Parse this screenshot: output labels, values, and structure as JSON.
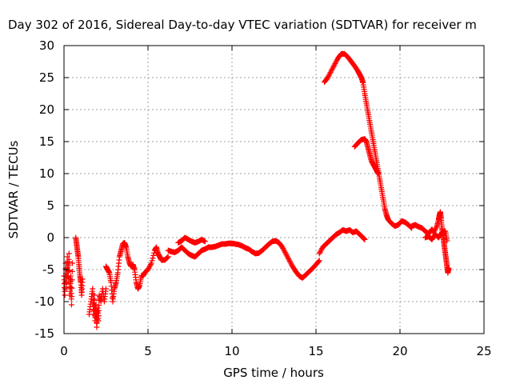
{
  "chart_data": {
    "type": "scatter",
    "title": "Day 302 of 2016, Sidereal Day-to-day VTEC variation (SDTVAR) for receiver m",
    "xlabel": "GPS time / hours",
    "ylabel": "SDTVAR / TECUs",
    "xlim": [
      0,
      25
    ],
    "ylim": [
      -15,
      30
    ],
    "xticks": [
      "0",
      "5",
      "10",
      "15",
      "20",
      "25"
    ],
    "yticks": [
      "-15",
      "-10",
      "-5",
      "0",
      "5",
      "10",
      "15",
      "20",
      "25",
      "30"
    ],
    "grid": true,
    "marker": "+",
    "color": "#ff0000",
    "series": [
      {
        "segments": [
          [
            [
              0.0,
              -6
            ],
            [
              0.05,
              -9
            ],
            [
              0.1,
              -4
            ],
            [
              0.15,
              -8
            ],
            [
              0.2,
              -3
            ],
            [
              0.25,
              -7
            ],
            [
              0.3,
              -2.5
            ],
            [
              0.35,
              -9
            ],
            [
              0.4,
              -6
            ],
            [
              0.45,
              -10.5
            ],
            [
              0.5,
              -4
            ]
          ],
          [
            [
              0.7,
              0
            ],
            [
              0.75,
              -1
            ],
            [
              0.8,
              -2
            ],
            [
              0.85,
              -3
            ],
            [
              0.9,
              -4.5
            ],
            [
              0.95,
              -6
            ],
            [
              1.0,
              -7
            ],
            [
              1.05,
              -9
            ],
            [
              1.1,
              -6.5
            ]
          ],
          [
            [
              1.5,
              -12
            ],
            [
              1.6,
              -10
            ],
            [
              1.7,
              -8
            ],
            [
              1.75,
              -12
            ],
            [
              1.8,
              -9
            ],
            [
              1.85,
              -13
            ],
            [
              1.9,
              -10.5
            ],
            [
              1.95,
              -14
            ],
            [
              2.0,
              -11
            ],
            [
              2.05,
              -13
            ],
            [
              2.1,
              -9
            ],
            [
              2.2,
              -10
            ],
            [
              2.3,
              -8
            ],
            [
              2.4,
              -10
            ],
            [
              2.5,
              -8
            ]
          ],
          [
            [
              2.5,
              -4.5
            ],
            [
              2.6,
              -5
            ],
            [
              2.7,
              -5.5
            ],
            [
              2.8,
              -7
            ],
            [
              2.9,
              -10
            ],
            [
              3.0,
              -8
            ],
            [
              3.1,
              -7
            ],
            [
              3.2,
              -5.5
            ],
            [
              3.3,
              -3
            ],
            [
              3.4,
              -2
            ],
            [
              3.5,
              -1
            ],
            [
              3.6,
              -0.8
            ],
            [
              3.7,
              -1.5
            ],
            [
              3.8,
              -3
            ],
            [
              3.9,
              -4
            ],
            [
              4.0,
              -4.5
            ],
            [
              4.1,
              -4.2
            ],
            [
              4.2,
              -5
            ],
            [
              4.3,
              -7
            ],
            [
              4.4,
              -8
            ],
            [
              4.5,
              -7.5
            ],
            [
              4.6,
              -6
            ],
            [
              4.7,
              -6
            ],
            [
              4.8,
              -5.5
            ],
            [
              5.0,
              -5
            ],
            [
              5.2,
              -4
            ],
            [
              5.4,
              -2
            ],
            [
              5.5,
              -1.5
            ],
            [
              5.6,
              -2.5
            ],
            [
              5.7,
              -3
            ],
            [
              5.8,
              -3.5
            ],
            [
              6.0,
              -3.5
            ],
            [
              6.2,
              -3
            ]
          ],
          [
            [
              6.2,
              -2
            ],
            [
              6.4,
              -2.2
            ],
            [
              6.6,
              -2.3
            ],
            [
              6.8,
              -2
            ],
            [
              7.0,
              -1.5
            ],
            [
              7.2,
              -2
            ],
            [
              7.4,
              -2.5
            ],
            [
              7.6,
              -2.8
            ],
            [
              7.8,
              -3
            ],
            [
              8.0,
              -2.5
            ],
            [
              8.2,
              -2
            ],
            [
              8.4,
              -1.8
            ],
            [
              8.6,
              -1.5
            ],
            [
              8.8,
              -1.5
            ],
            [
              9.0,
              -1.4
            ],
            [
              9.2,
              -1.2
            ],
            [
              9.4,
              -1.0
            ],
            [
              9.6,
              -1.0
            ],
            [
              9.8,
              -0.9
            ],
            [
              10.0,
              -0.9
            ],
            [
              10.2,
              -1.0
            ],
            [
              10.4,
              -1.1
            ],
            [
              10.6,
              -1.3
            ],
            [
              10.8,
              -1.6
            ],
            [
              11.0,
              -1.8
            ],
            [
              11.2,
              -2.2
            ],
            [
              11.4,
              -2.5
            ],
            [
              11.6,
              -2.4
            ],
            [
              11.8,
              -2.0
            ],
            [
              12.0,
              -1.5
            ],
            [
              12.2,
              -1.0
            ],
            [
              12.4,
              -0.6
            ],
            [
              12.6,
              -0.5
            ],
            [
              12.8,
              -0.8
            ],
            [
              13.0,
              -1.5
            ],
            [
              13.2,
              -2.5
            ],
            [
              13.4,
              -3.5
            ],
            [
              13.6,
              -4.5
            ],
            [
              13.8,
              -5.3
            ],
            [
              14.0,
              -6.0
            ],
            [
              14.2,
              -6.3
            ],
            [
              14.4,
              -5.8
            ],
            [
              14.6,
              -5.3
            ],
            [
              14.8,
              -4.8
            ],
            [
              15.0,
              -4.2
            ],
            [
              15.2,
              -3.6
            ]
          ],
          [
            [
              6.8,
              -0.8
            ],
            [
              7.0,
              -0.5
            ],
            [
              7.2,
              0.0
            ],
            [
              7.4,
              -0.3
            ],
            [
              7.6,
              -0.6
            ],
            [
              7.8,
              -0.8
            ],
            [
              8.0,
              -0.6
            ],
            [
              8.2,
              -0.3
            ],
            [
              8.4,
              -0.6
            ]
          ],
          [
            [
              15.2,
              -2.5
            ],
            [
              15.4,
              -1.5
            ],
            [
              15.6,
              -1.0
            ],
            [
              15.8,
              -0.5
            ],
            [
              16.0,
              0.0
            ],
            [
              16.2,
              0.5
            ],
            [
              16.4,
              0.8
            ],
            [
              16.6,
              1.2
            ],
            [
              16.8,
              1.0
            ],
            [
              17.0,
              1.2
            ],
            [
              17.2,
              0.8
            ],
            [
              17.4,
              1.0
            ],
            [
              17.6,
              0.5
            ],
            [
              17.8,
              0.0
            ],
            [
              17.9,
              -0.3
            ]
          ],
          [
            [
              15.5,
              24.3
            ],
            [
              15.7,
              25
            ],
            [
              15.9,
              26
            ],
            [
              16.1,
              27
            ],
            [
              16.3,
              28
            ],
            [
              16.5,
              28.7
            ],
            [
              16.7,
              28.7
            ],
            [
              16.9,
              28.2
            ],
            [
              17.1,
              27.5
            ],
            [
              17.3,
              26.8
            ],
            [
              17.5,
              26.0
            ],
            [
              17.6,
              25.5
            ],
            [
              17.7,
              25.0
            ],
            [
              17.8,
              24.2
            ],
            [
              17.9,
              22.5
            ],
            [
              18.0,
              21.0
            ],
            [
              18.1,
              19.5
            ],
            [
              18.2,
              18.0
            ],
            [
              18.3,
              16.5
            ],
            [
              18.4,
              15.0
            ],
            [
              18.5,
              13.5
            ],
            [
              18.6,
              12.0
            ],
            [
              18.7,
              10.5
            ],
            [
              18.8,
              9.0
            ],
            [
              18.9,
              7.5
            ],
            [
              19.0,
              6.0
            ],
            [
              19.1,
              4.5
            ],
            [
              19.2,
              3.5
            ],
            [
              19.3,
              2.8
            ],
            [
              19.5,
              2.2
            ],
            [
              19.7,
              1.8
            ],
            [
              19.9,
              2.0
            ],
            [
              20.1,
              2.6
            ],
            [
              20.3,
              2.4
            ],
            [
              20.5,
              2.0
            ],
            [
              20.7,
              1.5
            ]
          ],
          [
            [
              17.3,
              14.2
            ],
            [
              17.5,
              14.8
            ],
            [
              17.7,
              15.3
            ],
            [
              17.9,
              15.4
            ],
            [
              18.0,
              15.0
            ],
            [
              18.1,
              14.0
            ],
            [
              18.2,
              13.0
            ],
            [
              18.3,
              12.0
            ],
            [
              18.4,
              11.5
            ],
            [
              18.5,
              11.0
            ],
            [
              18.6,
              10.5
            ],
            [
              18.7,
              10.0
            ]
          ],
          [
            [
              20.7,
              1.8
            ],
            [
              20.9,
              2.0
            ],
            [
              21.1,
              1.7
            ],
            [
              21.3,
              1.5
            ],
            [
              21.5,
              1.0
            ],
            [
              21.7,
              0.6
            ],
            [
              21.9,
              1.3
            ],
            [
              22.0,
              0.8
            ],
            [
              22.2,
              1.8
            ],
            [
              22.3,
              2.8
            ],
            [
              22.35,
              3.5
            ],
            [
              22.4,
              4.0
            ],
            [
              22.45,
              3.0
            ],
            [
              22.5,
              1.5
            ],
            [
              22.55,
              0.5
            ],
            [
              22.6,
              -0.5
            ],
            [
              22.65,
              -1.5
            ],
            [
              22.7,
              -2.5
            ],
            [
              22.75,
              -3.5
            ],
            [
              22.8,
              -4.5
            ],
            [
              22.85,
              -5.5
            ],
            [
              22.9,
              -4.8
            ]
          ],
          [
            [
              21.5,
              0.0
            ],
            [
              21.7,
              0.2
            ],
            [
              21.9,
              -0.3
            ],
            [
              22.1,
              0.5
            ],
            [
              22.3,
              0.0
            ],
            [
              22.5,
              0.8
            ],
            [
              22.7,
              1.0
            ],
            [
              22.8,
              -0.5
            ]
          ]
        ]
      }
    ]
  }
}
